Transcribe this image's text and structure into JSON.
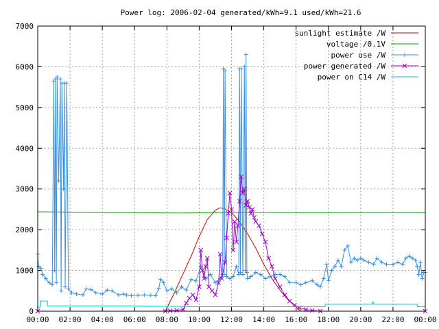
{
  "chart_data": {
    "type": "line",
    "title": "Power log: 2006-02-04 generated/kWh=9.1 used/kWh=21.6",
    "xlabel": "",
    "ylabel": "",
    "xlim": [
      0,
      24
    ],
    "ylim": [
      0,
      7000
    ],
    "x_ticks": [
      "00:00",
      "02:00",
      "04:00",
      "06:00",
      "08:00",
      "10:00",
      "12:00",
      "14:00",
      "16:00",
      "18:00",
      "20:00",
      "22:00",
      "00:00"
    ],
    "y_ticks": [
      0,
      1000,
      2000,
      3000,
      4000,
      5000,
      6000,
      7000
    ],
    "grid": true,
    "legend_position": "top-right",
    "series": [
      {
        "name": "sunlight estimate /W",
        "color": "#cc0000",
        "marker": "none",
        "points": [
          [
            7.9,
            0
          ],
          [
            8.5,
            480
          ],
          [
            9.0,
            920
          ],
          [
            9.5,
            1350
          ],
          [
            10.0,
            1830
          ],
          [
            10.5,
            2250
          ],
          [
            11.0,
            2480
          ],
          [
            11.3,
            2540
          ],
          [
            11.6,
            2510
          ],
          [
            12.0,
            2420
          ],
          [
            12.5,
            2200
          ],
          [
            13.0,
            1900
          ],
          [
            13.5,
            1550
          ],
          [
            14.0,
            1150
          ],
          [
            14.5,
            800
          ],
          [
            15.0,
            520
          ],
          [
            15.5,
            280
          ],
          [
            16.0,
            100
          ],
          [
            16.3,
            0
          ]
        ]
      },
      {
        "name": "voltage /0.1V",
        "color": "#00a000",
        "marker": "none",
        "points": [
          [
            0,
            2440
          ],
          [
            3,
            2430
          ],
          [
            6,
            2420
          ],
          [
            9,
            2410
          ],
          [
            12,
            2425
          ],
          [
            13,
            2430
          ],
          [
            16,
            2420
          ],
          [
            19,
            2420
          ],
          [
            22,
            2425
          ],
          [
            24,
            2420
          ]
        ]
      },
      {
        "name": "power use /W",
        "color": "#3a8fe0",
        "marker": "plus",
        "points": [
          [
            0.0,
            1400
          ],
          [
            0.05,
            1100
          ],
          [
            0.2,
            1050
          ],
          [
            0.3,
            900
          ],
          [
            0.5,
            800
          ],
          [
            0.7,
            700
          ],
          [
            0.9,
            650
          ],
          [
            1.0,
            5650
          ],
          [
            1.05,
            1000
          ],
          [
            1.1,
            5700
          ],
          [
            1.15,
            700
          ],
          [
            1.2,
            5750
          ],
          [
            1.3,
            3200
          ],
          [
            1.4,
            5700
          ],
          [
            1.45,
            500
          ],
          [
            1.5,
            5600
          ],
          [
            1.6,
            3000
          ],
          [
            1.65,
            5600
          ],
          [
            1.7,
            600
          ],
          [
            1.8,
            5600
          ],
          [
            1.9,
            550
          ],
          [
            2.1,
            450
          ],
          [
            2.4,
            420
          ],
          [
            2.8,
            400
          ],
          [
            3.0,
            550
          ],
          [
            3.3,
            530
          ],
          [
            3.6,
            450
          ],
          [
            4.0,
            420
          ],
          [
            4.3,
            520
          ],
          [
            4.6,
            500
          ],
          [
            5.0,
            400
          ],
          [
            5.3,
            420
          ],
          [
            5.5,
            400
          ],
          [
            5.8,
            380
          ],
          [
            6.2,
            390
          ],
          [
            6.6,
            400
          ],
          [
            7.0,
            390
          ],
          [
            7.3,
            380
          ],
          [
            7.5,
            560
          ],
          [
            7.6,
            780
          ],
          [
            7.8,
            700
          ],
          [
            8.0,
            500
          ],
          [
            8.3,
            550
          ],
          [
            8.6,
            450
          ],
          [
            8.9,
            600
          ],
          [
            9.2,
            520
          ],
          [
            9.5,
            780
          ],
          [
            9.8,
            740
          ],
          [
            10.1,
            1100
          ],
          [
            10.4,
            800
          ],
          [
            10.7,
            900
          ],
          [
            11.0,
            700
          ],
          [
            11.3,
            800
          ],
          [
            11.45,
            900
          ],
          [
            11.5,
            5950
          ],
          [
            11.55,
            900
          ],
          [
            11.6,
            5900
          ],
          [
            11.7,
            850
          ],
          [
            11.9,
            800
          ],
          [
            12.1,
            850
          ],
          [
            12.3,
            1100
          ],
          [
            12.45,
            900
          ],
          [
            12.5,
            5950
          ],
          [
            12.55,
            950
          ],
          [
            12.6,
            5950
          ],
          [
            12.7,
            900
          ],
          [
            12.8,
            6000
          ],
          [
            12.85,
            1000
          ],
          [
            12.9,
            6300
          ],
          [
            12.95,
            950
          ],
          [
            13.0,
            800
          ],
          [
            13.2,
            850
          ],
          [
            13.5,
            950
          ],
          [
            13.8,
            900
          ],
          [
            14.1,
            800
          ],
          [
            14.4,
            850
          ],
          [
            14.7,
            900
          ],
          [
            15.0,
            900
          ],
          [
            15.3,
            850
          ],
          [
            15.6,
            700
          ],
          [
            16.0,
            700
          ],
          [
            16.3,
            650
          ],
          [
            16.6,
            700
          ],
          [
            17.0,
            750
          ],
          [
            17.3,
            650
          ],
          [
            17.5,
            600
          ],
          [
            17.7,
            800
          ],
          [
            17.9,
            1150
          ],
          [
            18.0,
            750
          ],
          [
            18.2,
            1000
          ],
          [
            18.4,
            1100
          ],
          [
            18.6,
            1250
          ],
          [
            18.8,
            1100
          ],
          [
            19.0,
            1500
          ],
          [
            19.2,
            1600
          ],
          [
            19.4,
            1200
          ],
          [
            19.6,
            1300
          ],
          [
            19.8,
            1250
          ],
          [
            20.0,
            1300
          ],
          [
            20.2,
            1250
          ],
          [
            20.5,
            1200
          ],
          [
            20.8,
            1150
          ],
          [
            21.0,
            1300
          ],
          [
            21.3,
            1200
          ],
          [
            21.6,
            1150
          ],
          [
            22.0,
            1150
          ],
          [
            22.3,
            1200
          ],
          [
            22.6,
            1150
          ],
          [
            22.8,
            1300
          ],
          [
            23.0,
            1350
          ],
          [
            23.2,
            1300
          ],
          [
            23.4,
            1250
          ],
          [
            23.5,
            1100
          ],
          [
            23.6,
            900
          ],
          [
            23.7,
            1200
          ],
          [
            23.8,
            800
          ],
          [
            23.9,
            950
          ],
          [
            24.0,
            950
          ]
        ]
      },
      {
        "name": "power generated /W",
        "color": "#a000c8",
        "marker": "cross",
        "points": [
          [
            0,
            0
          ],
          [
            7.9,
            0
          ],
          [
            8.2,
            10
          ],
          [
            8.6,
            20
          ],
          [
            9.0,
            40
          ],
          [
            9.2,
            200
          ],
          [
            9.4,
            320
          ],
          [
            9.6,
            400
          ],
          [
            9.8,
            280
          ],
          [
            10.0,
            600
          ],
          [
            10.1,
            1500
          ],
          [
            10.2,
            1000
          ],
          [
            10.3,
            800
          ],
          [
            10.4,
            1100
          ],
          [
            10.5,
            1300
          ],
          [
            10.6,
            600
          ],
          [
            10.8,
            500
          ],
          [
            11.0,
            400
          ],
          [
            11.2,
            700
          ],
          [
            11.3,
            1400
          ],
          [
            11.4,
            800
          ],
          [
            11.6,
            1200
          ],
          [
            11.7,
            1800
          ],
          [
            11.8,
            2400
          ],
          [
            11.9,
            2900
          ],
          [
            12.0,
            2500
          ],
          [
            12.1,
            1500
          ],
          [
            12.2,
            2200
          ],
          [
            12.3,
            1700
          ],
          [
            12.4,
            2100
          ],
          [
            12.5,
            2700
          ],
          [
            12.6,
            3300
          ],
          [
            12.7,
            2900
          ],
          [
            12.8,
            3000
          ],
          [
            12.9,
            2600
          ],
          [
            13.0,
            2700
          ],
          [
            13.1,
            2550
          ],
          [
            13.2,
            2400
          ],
          [
            13.3,
            2500
          ],
          [
            13.4,
            2300
          ],
          [
            13.5,
            2200
          ],
          [
            13.7,
            2100
          ],
          [
            13.9,
            1900
          ],
          [
            14.1,
            1700
          ],
          [
            14.3,
            1300
          ],
          [
            14.5,
            1100
          ],
          [
            14.7,
            800
          ],
          [
            15.0,
            600
          ],
          [
            15.3,
            400
          ],
          [
            15.6,
            250
          ],
          [
            15.9,
            150
          ],
          [
            16.2,
            80
          ],
          [
            16.6,
            40
          ],
          [
            17.0,
            20
          ],
          [
            17.5,
            0
          ],
          [
            24,
            0
          ]
        ]
      },
      {
        "name": "power on C14 /W",
        "color": "#00c8c8",
        "marker": "none",
        "points": [
          [
            0,
            100
          ],
          [
            0.15,
            100
          ],
          [
            0.15,
            250
          ],
          [
            0.6,
            250
          ],
          [
            0.6,
            130
          ],
          [
            3,
            130
          ],
          [
            6,
            130
          ],
          [
            8,
            120
          ],
          [
            10,
            110
          ],
          [
            12,
            110
          ],
          [
            14,
            110
          ],
          [
            16,
            110
          ],
          [
            17.8,
            110
          ],
          [
            17.8,
            170
          ],
          [
            20.7,
            170
          ],
          [
            20.7,
            220
          ],
          [
            20.8,
            220
          ],
          [
            20.8,
            170
          ],
          [
            23.5,
            170
          ],
          [
            23.5,
            110
          ],
          [
            24,
            110
          ]
        ]
      }
    ]
  }
}
